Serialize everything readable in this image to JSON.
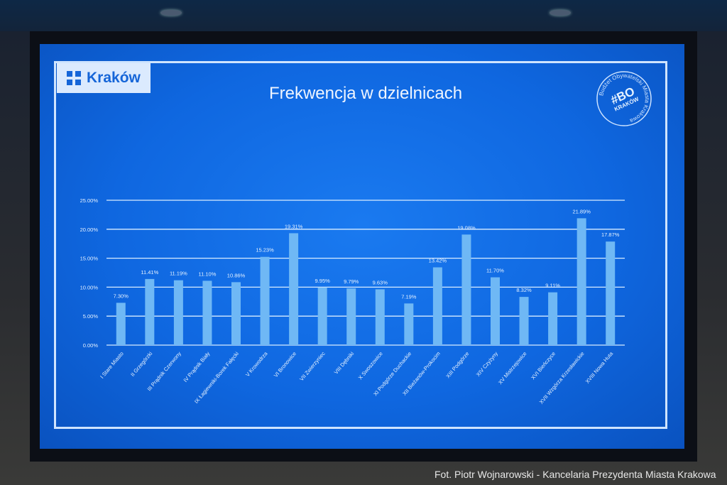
{
  "logo": {
    "text": "Kraków"
  },
  "seal": {
    "top": "Budżet Obywatelski Miasta Krakowa",
    "center": "#BO",
    "sub": "KRAKÓW"
  },
  "caption": "Fot. Piotr Wojnarowski - Kancelaria Prezydenta Miasta Krakowa",
  "colors": {
    "screen": "#0f67e0",
    "bar": "#6fb8f5",
    "grid": "#d8ecff",
    "text": "#e6f2ff"
  },
  "chart_data": {
    "type": "bar",
    "title": "Frekwencja w dzielnicach",
    "xlabel": "",
    "ylabel": "",
    "ylim": [
      0,
      25
    ],
    "yticks": [
      "0.00%",
      "5.00%",
      "10.00%",
      "15.00%",
      "20.00%",
      "25.00%"
    ],
    "grid": true,
    "categories": [
      "I Stare Miasto",
      "II Grzegórzki",
      "III Prądnik Czerwony",
      "IV Prądnik Biały",
      "IX Łagiewniki-Borek Fałęcki",
      "V Krowodrza",
      "VI Bronowice",
      "VII Zwierzyniec",
      "VIII Dębniki",
      "X Swoszowice",
      "XI Podgórze Duchackie",
      "XII Bieżanów-Prokocim",
      "XIII Podgórze",
      "XIV Czyżyny",
      "XV Mistrzejowice",
      "XVI Bieńczyce",
      "XVII Wzgórza Krzesławickie",
      "XVIII Nowa Huta"
    ],
    "values": [
      7.3,
      11.41,
      11.19,
      11.1,
      10.86,
      15.23,
      19.31,
      9.95,
      9.79,
      9.63,
      7.19,
      13.42,
      19.08,
      11.7,
      8.32,
      9.11,
      21.89,
      17.87
    ],
    "labels": [
      "7.30%",
      "11.41%",
      "11.19%",
      "11.10%",
      "10.86%",
      "15.23%",
      "19.31%",
      "9.95%",
      "9.79%",
      "9.63%",
      "7.19%",
      "13.42%",
      "19.08%",
      "11.70%",
      "8.32%",
      "9.11%",
      "21.89%",
      "17.87%"
    ]
  }
}
